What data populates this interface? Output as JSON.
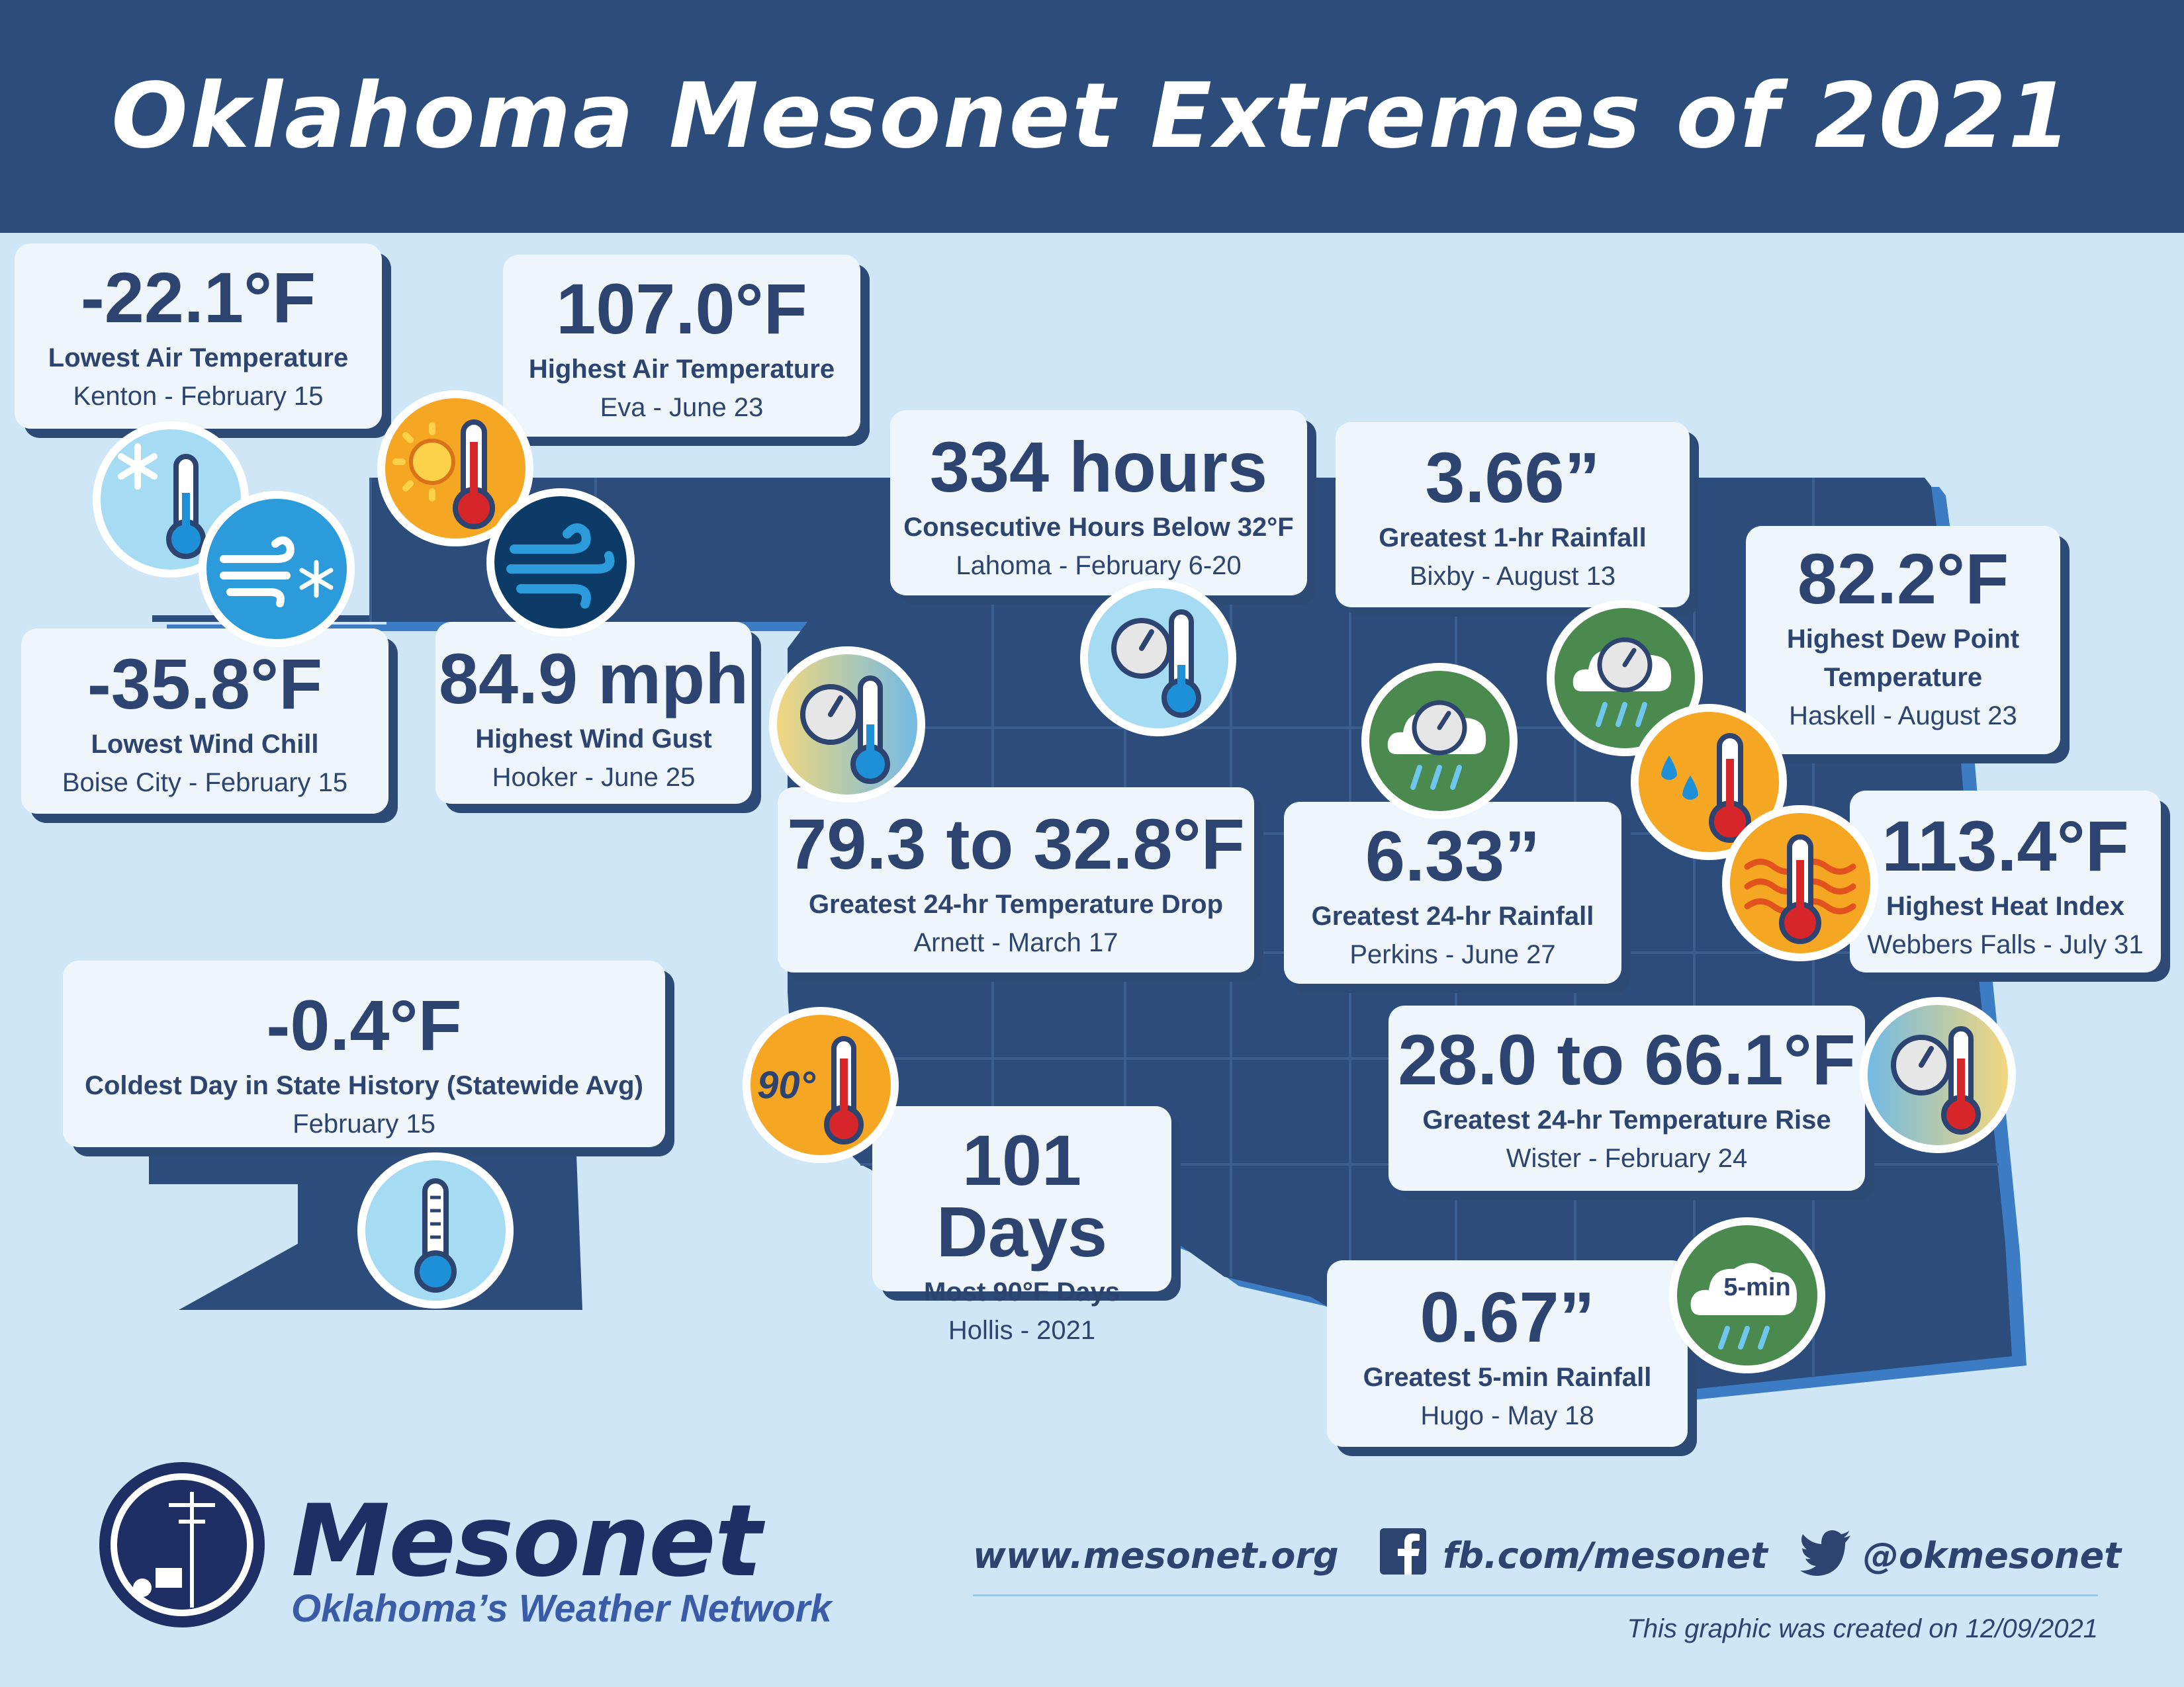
{
  "title": "Oklahoma Mesonet Extremes of 2021",
  "colors": {
    "header": "#2c4c7b",
    "background": "#cfe6f7",
    "map": "#2c4c7b",
    "map_edge": "#3b7cc4",
    "card": "#eef6fc",
    "text": "#2d4470"
  },
  "cards": {
    "low_air": {
      "value": "-22.1°F",
      "label": "Lowest Air Temperature",
      "sub": "Kenton - February 15"
    },
    "high_air": {
      "value": "107.0°F",
      "label": "Highest Air Temperature",
      "sub": "Eva - June 23"
    },
    "wind_chill": {
      "value": "-35.8°F",
      "label": "Lowest Wind Chill",
      "sub": "Boise City - February 15"
    },
    "wind_gust": {
      "value": "84.9 mph",
      "label": "Highest Wind Gust",
      "sub": "Hooker - June 25"
    },
    "below32": {
      "value": "334 hours",
      "label": "Consecutive Hours Below 32°F",
      "sub": "Lahoma - February 6-20"
    },
    "rain1hr": {
      "value": "3.66”",
      "label": "Greatest 1-hr Rainfall",
      "sub": "Bixby - August 13"
    },
    "dewpoint": {
      "value": "82.2°F",
      "label1": "Highest Dew Point",
      "label2": "Temperature",
      "sub": "Haskell - August 23"
    },
    "temp_drop": {
      "value": "79.3 to 32.8°F",
      "label": "Greatest 24-hr Temperature Drop",
      "sub": "Arnett - March 17"
    },
    "rain24hr": {
      "value": "6.33”",
      "label": "Greatest 24-hr Rainfall",
      "sub": "Perkins - June 27"
    },
    "heat_index": {
      "value": "113.4°F",
      "label": "Highest Heat Index",
      "sub": "Webbers Falls - July 31"
    },
    "coldest_day": {
      "value": "-0.4°F",
      "label": "Coldest Day in State History (Statewide Avg)",
      "sub": "February 15"
    },
    "temp_rise": {
      "value": "28.0 to 66.1°F",
      "label": "Greatest 24-hr Temperature Rise",
      "sub": "Wister - February 24"
    },
    "days90": {
      "value": "101 Days",
      "label": "Most 90°F Days",
      "sub": "Hollis - 2021"
    },
    "rain5min": {
      "value": "0.67”",
      "label": "Greatest 5-min Rainfall",
      "sub": "Hugo - May 18"
    }
  },
  "icons": {
    "badge_90": "90°",
    "badge_5min": "5-min",
    "names": [
      "snowflake-thermometer-icon",
      "sun-thermometer-icon",
      "wind-snowflake-icon",
      "wind-icon",
      "gauge-thermometer-icon",
      "rain-gauge-icon",
      "droplet-thermometer-icon",
      "heat-thermometer-icon",
      "90-degree-thermometer-icon",
      "thermometer-icon",
      "rain-5min-icon"
    ]
  },
  "footer": {
    "logo_word": "Mesonet",
    "logo_tagline": "Oklahoma’s Weather Network",
    "website": "www.mesonet.org",
    "facebook": "fb.com/mesonet",
    "twitter": "@okmesonet",
    "created": "This graphic was created on 12/09/2021"
  }
}
